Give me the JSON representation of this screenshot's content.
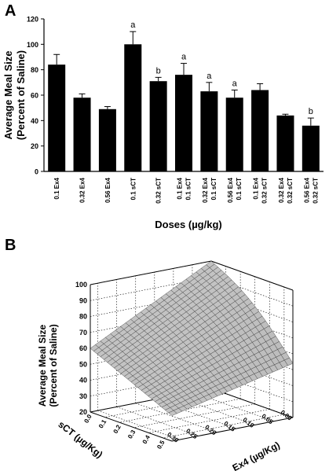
{
  "chart_data": [
    {
      "type": "bar",
      "panel_label": "A",
      "xlabel": "Doses (µg/kg)",
      "ylabel_line1": "Average Meal Size",
      "ylabel_line2": "(Percent of Saline)",
      "ylim": [
        0,
        120
      ],
      "yticks": [
        0,
        20,
        40,
        60,
        80,
        100,
        120
      ],
      "categories": [
        [
          "0.1 Ex4"
        ],
        [
          "0.32 Ex4"
        ],
        [
          "0.56 Ex4"
        ],
        [
          "0.1 sCT"
        ],
        [
          "0.32 sCT"
        ],
        [
          "0.1 Ex4",
          "0.1 sCT"
        ],
        [
          "0.32 Ex4",
          "0.1 sCT"
        ],
        [
          "0.56 Ex4",
          "0.1 sCT"
        ],
        [
          "0.1 Ex4",
          "0.32 sCT"
        ],
        [
          "0.32 Ex4",
          "0.32 sCT"
        ],
        [
          "0.56 Ex4",
          "0.32 sCT"
        ]
      ],
      "values": [
        84,
        58,
        49,
        100,
        71,
        76,
        63,
        58,
        64,
        44,
        36
      ],
      "errors": [
        8,
        3,
        2,
        10,
        3,
        9,
        7,
        6,
        5,
        1,
        6
      ],
      "annotations": [
        "",
        "",
        "",
        "a",
        "b",
        "a",
        "a",
        "a",
        "",
        "",
        "b"
      ],
      "bar_color": "#000000"
    },
    {
      "type": "surface",
      "panel_label": "B",
      "zlabel_line1": "Average Meal Size",
      "zlabel_line2": "(Percent of Saline)",
      "sct_label": "sCT (µg/Kg)",
      "ex4_label": "Ex4 (µg/Kg)",
      "zticks": [
        20,
        30,
        40,
        50,
        60,
        70,
        80,
        90,
        100
      ],
      "sct_ticks": [
        "0.00",
        "0.05",
        "0.10",
        "0.15",
        "0.20",
        "0.25",
        "0.30"
      ],
      "ex4_ticks": [
        "0.0",
        "0.1",
        "0.2",
        "0.3",
        "0.4",
        "0.5"
      ],
      "zlim": [
        20,
        100
      ],
      "sct_range": [
        0,
        0.32
      ],
      "ex4_range": [
        0,
        0.56
      ],
      "surface_color": "#c8c8c8"
    }
  ]
}
